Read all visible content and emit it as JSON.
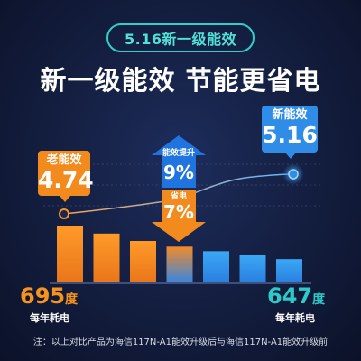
{
  "badge": "5.16新一级能效",
  "headline": "新一级能效 节能更省电",
  "old_callout": {
    "label": "老能效",
    "value": "4.74"
  },
  "new_callout": {
    "label": "新能效",
    "value": "5.16"
  },
  "up_arrow": {
    "label": "能效提升",
    "value": "9%"
  },
  "down_arrow": {
    "label": "省电",
    "value": "7%"
  },
  "left_value": {
    "number": "695",
    "unit": "度",
    "label": "每年耗电"
  },
  "right_value": {
    "number": "647",
    "unit": "度",
    "label": "每年耗电"
  },
  "note": "注：以上对比产品为海信117N-A1能效升级后与海信117N-A1能效升级前",
  "colors": {
    "orange": "#f7941e",
    "blue": "#2f8de8",
    "teal": "#2ec9c9",
    "up_arrow": "#1f74e0",
    "down_arrow": "#f28a1e"
  },
  "chart_data": {
    "type": "bar",
    "note": "Decorative comparison graphic; bars are unlabeled, levels estimated relative to the tallest bar (1.0).",
    "bars": [
      {
        "level": 1.0,
        "color": "orange"
      },
      {
        "level": 0.86,
        "color": "orange"
      },
      {
        "level": 0.73,
        "color": "orange"
      },
      {
        "level": 0.63,
        "color": "mixed"
      },
      {
        "level": 0.55,
        "color": "blue"
      },
      {
        "level": 0.48,
        "color": "blue"
      },
      {
        "level": 0.41,
        "color": "blue"
      }
    ],
    "line": {
      "start": {
        "label": "老能效",
        "value": 4.74
      },
      "end": {
        "label": "新能效",
        "value": 5.16
      }
    }
  }
}
